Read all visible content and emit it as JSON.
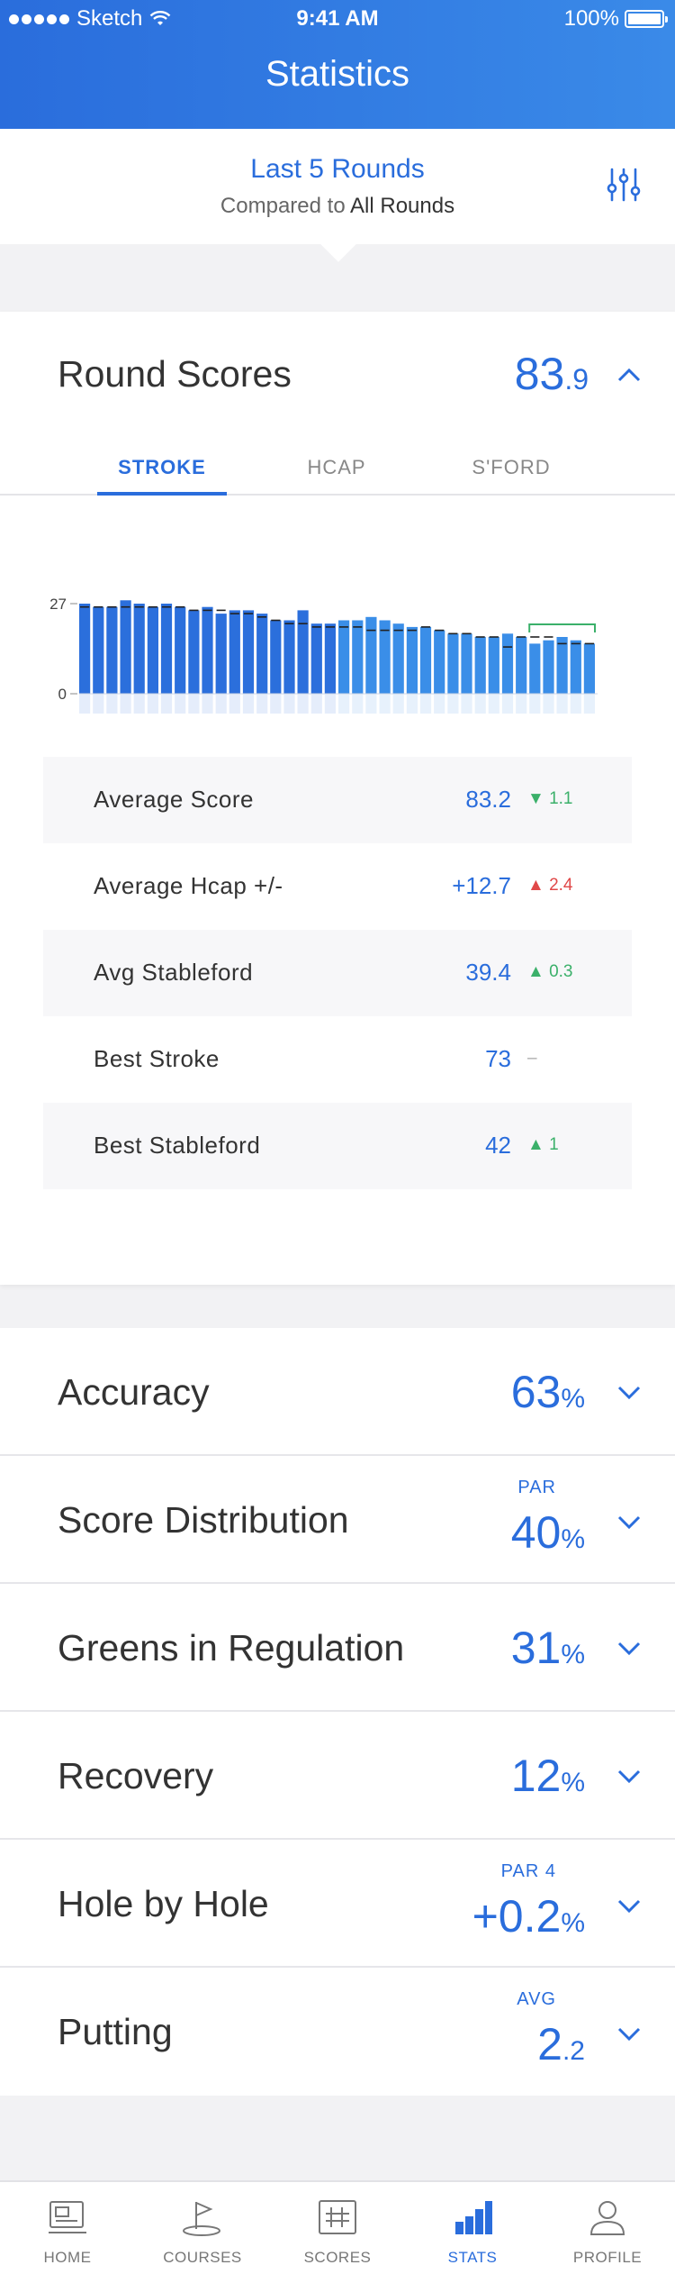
{
  "status_bar": {
    "carrier": "Sketch",
    "time": "9:41 AM",
    "battery": "100%"
  },
  "header": {
    "title": "Statistics"
  },
  "filter": {
    "range": "Last 5 Rounds",
    "compared_prefix": "Compared to",
    "compared_value": "All Rounds",
    "icon": "sliders-icon"
  },
  "round_scores": {
    "title": "Round Scores",
    "value_main": "83",
    "value_dec": ".9",
    "tabs": [
      "STROKE",
      "HCAP",
      "S'FORD"
    ],
    "active_tab": 0
  },
  "chart_data": {
    "type": "bar",
    "y_ticks": [
      "27",
      "0"
    ],
    "ylim": [
      0,
      27
    ],
    "values": [
      27,
      26,
      26,
      28,
      27,
      26,
      27,
      26,
      25,
      26,
      24,
      25,
      25,
      24,
      22,
      22,
      25,
      21,
      21,
      22,
      22,
      23,
      22,
      21,
      20,
      20,
      19,
      18,
      18,
      17,
      17,
      18,
      17,
      15,
      16,
      17,
      16,
      15
    ],
    "averages": [
      26,
      26,
      26,
      26,
      26,
      26,
      26,
      26,
      25,
      25,
      25,
      24,
      24,
      23,
      22,
      21,
      21,
      20,
      20,
      20,
      20,
      19,
      19,
      19,
      19,
      20,
      19,
      18,
      18,
      17,
      17,
      14,
      17,
      17,
      17,
      15,
      15,
      15
    ],
    "highlight_last": 5,
    "colors": {
      "bar": "#2b6fdc",
      "bar_light": "#3a8ee8",
      "avg": "#222222",
      "highlight": "#3bb06a"
    }
  },
  "stats": [
    {
      "label": "Average Score",
      "value": "83.2",
      "delta": "▼ 1.1",
      "tone": "good"
    },
    {
      "label": "Average Hcap +/-",
      "value": "+12.7",
      "delta": "▲ 2.4",
      "tone": "bad"
    },
    {
      "label": "Avg Stableford",
      "value": "39.4",
      "delta": "▲ 0.3",
      "tone": "good"
    },
    {
      "label": "Best Stroke",
      "value": "73",
      "delta": "–",
      "tone": "none"
    },
    {
      "label": "Best Stableford",
      "value": "42",
      "delta": "▲ 1",
      "tone": "good"
    }
  ],
  "sections": [
    {
      "name": "Accuracy",
      "cap": "",
      "value": "63",
      "unit": "%"
    },
    {
      "name": "Score Distribution",
      "cap": "PAR",
      "value": "40",
      "unit": "%"
    },
    {
      "name": "Greens in Regulation",
      "cap": "",
      "value": "31",
      "unit": "%"
    },
    {
      "name": "Recovery",
      "cap": "",
      "value": "12",
      "unit": "%"
    },
    {
      "name": "Hole by Hole",
      "cap": "PAR 4",
      "value": "+0.2",
      "unit": "%"
    },
    {
      "name": "Putting",
      "cap": "AVG",
      "value": "2",
      "unit": ".2"
    }
  ],
  "tabbar": [
    {
      "label": "HOME",
      "icon": "home-icon"
    },
    {
      "label": "COURSES",
      "icon": "flag-icon"
    },
    {
      "label": "SCORES",
      "icon": "scorecard-icon"
    },
    {
      "label": "STATS",
      "icon": "bar-chart-icon",
      "active": true
    },
    {
      "label": "PROFILE",
      "icon": "profile-icon"
    }
  ],
  "accent": "#2a6ddc"
}
